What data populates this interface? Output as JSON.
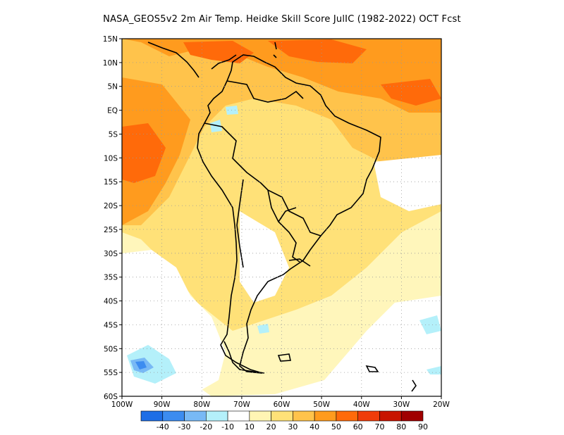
{
  "title": "NASA_GEOS5v2  2m Air Temp. Heidke Skill Score JulIC (1982-2022) OCT Fcst",
  "map": {
    "lon_labels": [
      "100W",
      "90W",
      "80W",
      "70W",
      "60W",
      "50W",
      "40W",
      "30W",
      "20W"
    ],
    "lat_labels": [
      "15N",
      "10N",
      "5N",
      "EQ",
      "5S",
      "10S",
      "15S",
      "20S",
      "25S",
      "30S",
      "35S",
      "40S",
      "45S",
      "50S",
      "55S",
      "60S"
    ],
    "lon_range": [
      -100,
      -20
    ],
    "lat_range": [
      -60,
      15
    ]
  },
  "colorbar": {
    "labels": [
      "-40",
      "-30",
      "-20",
      "-10",
      "10",
      "20",
      "30",
      "40",
      "50",
      "60",
      "70",
      "80",
      "90"
    ],
    "colors": [
      "#1e6ee6",
      "#3c8cf0",
      "#78b9f5",
      "#b4f0fa",
      "#ffffff",
      "#fff5b4",
      "#ffe178",
      "#ffc34b",
      "#ff9b1e",
      "#ff6a0a",
      "#f03c0a",
      "#c81400",
      "#a00000"
    ]
  },
  "legend_colors": {
    "skill_30": "#ffe178",
    "skill_40": "#ffc34b",
    "skill_50": "#ff9b1e",
    "skill_60": "#ff6a0a",
    "skill_neg": "#78b9f5",
    "skill_neg_strong": "#3c8cf0"
  }
}
